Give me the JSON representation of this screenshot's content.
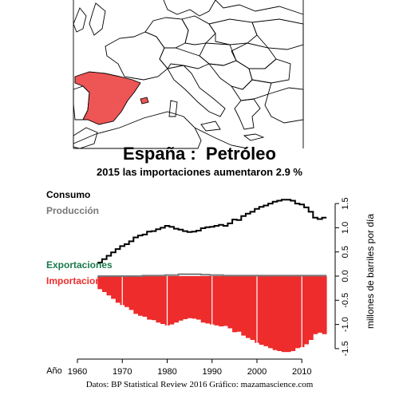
{
  "title": "España :  Petróleo",
  "subtitle": "2015 las importaciones aumentaron 2.9 %",
  "source": "Datos: BP Statistical Review 2016   Gráfico: mazamascience.com",
  "colors": {
    "consumo": "#000000",
    "produccion": "#777777",
    "exportaciones": "#1a7a4c",
    "importaciones": "#ee2c2c",
    "highlight_country": "#ee5555"
  },
  "map": {
    "highlight": "España",
    "icon": "europe-map-icon"
  },
  "chart_data": {
    "type": "area",
    "x_label": "Año",
    "y_label": "millones de barriles por día",
    "xlim": [
      1960,
      2016
    ],
    "ylim": [
      -1.65,
      1.65
    ],
    "x_ticks": [
      "1960",
      "1970",
      "1980",
      "1990",
      "2000",
      "2010"
    ],
    "y_ticks": [
      "1.5",
      "1.0",
      "0.5",
      "0.0",
      "-0.5",
      "-1.0",
      "-1.5"
    ],
    "legend": {
      "consumo": "Consumo",
      "produccion": "Producción",
      "exportaciones": "Exportaciones",
      "importaciones": "Importaciones"
    },
    "series": [
      {
        "name": "Consumo",
        "type": "step",
        "x": [
          1965,
          1966,
          1967,
          1968,
          1969,
          1970,
          1971,
          1972,
          1973,
          1974,
          1975,
          1976,
          1977,
          1978,
          1979,
          1980,
          1981,
          1982,
          1983,
          1984,
          1985,
          1986,
          1987,
          1988,
          1989,
          1990,
          1991,
          1992,
          1993,
          1994,
          1995,
          1996,
          1997,
          1998,
          1999,
          2000,
          2001,
          2002,
          2003,
          2004,
          2005,
          2006,
          2007,
          2008,
          2009,
          2010,
          2011,
          2012,
          2013,
          2014,
          2015
        ],
        "values": [
          0.28,
          0.35,
          0.42,
          0.49,
          0.56,
          0.62,
          0.66,
          0.72,
          0.8,
          0.84,
          0.86,
          0.92,
          0.93,
          0.97,
          1.0,
          1.04,
          1.02,
          0.98,
          0.96,
          0.93,
          0.91,
          0.92,
          0.94,
          0.99,
          1.01,
          1.02,
          1.04,
          1.06,
          1.04,
          1.09,
          1.17,
          1.16,
          1.24,
          1.29,
          1.33,
          1.39,
          1.43,
          1.46,
          1.5,
          1.54,
          1.56,
          1.58,
          1.58,
          1.56,
          1.5,
          1.48,
          1.42,
          1.33,
          1.21,
          1.18,
          1.21
        ]
      },
      {
        "name": "Producción",
        "type": "step",
        "x": [
          1965,
          1966,
          1967,
          1968,
          1969,
          1970,
          1971,
          1972,
          1973,
          1974,
          1975,
          1976,
          1977,
          1978,
          1979,
          1980,
          1981,
          1982,
          1983,
          1984,
          1985,
          1986,
          1987,
          1988,
          1989,
          1990,
          1991,
          1992,
          1993,
          1994,
          1995,
          1996,
          1997,
          1998,
          1999,
          2000,
          2001,
          2002,
          2003,
          2004,
          2005,
          2006,
          2007,
          2008,
          2009,
          2010,
          2011,
          2012,
          2013,
          2014,
          2015
        ],
        "values": [
          0,
          0,
          0,
          0,
          0,
          0,
          0,
          0,
          0,
          0,
          0.01,
          0.01,
          0.01,
          0.01,
          0.01,
          0.02,
          0.02,
          0.02,
          0.04,
          0.04,
          0.04,
          0.04,
          0.04,
          0.03,
          0.03,
          0.02,
          0.02,
          0.02,
          0.01,
          0.01,
          0.01,
          0.01,
          0.01,
          0.01,
          0.01,
          0.01,
          0.01,
          0.01,
          0.01,
          0.01,
          0.01,
          0.01,
          0.01,
          0.01,
          0.01,
          0.01,
          0.01,
          0.01,
          0.01,
          0.01,
          0.01
        ]
      },
      {
        "name": "Importaciones",
        "type": "bar",
        "x": [
          1965,
          1966,
          1967,
          1968,
          1969,
          1970,
          1971,
          1972,
          1973,
          1974,
          1975,
          1976,
          1977,
          1978,
          1979,
          1980,
          1981,
          1982,
          1983,
          1984,
          1985,
          1986,
          1987,
          1988,
          1989,
          1990,
          1991,
          1992,
          1993,
          1994,
          1995,
          1996,
          1997,
          1998,
          1999,
          2000,
          2001,
          2002,
          2003,
          2004,
          2005,
          2006,
          2007,
          2008,
          2009,
          2010,
          2011,
          2012,
          2013,
          2014,
          2015
        ],
        "values": [
          -0.27,
          -0.33,
          -0.4,
          -0.47,
          -0.55,
          -0.6,
          -0.64,
          -0.7,
          -0.78,
          -0.82,
          -0.84,
          -0.9,
          -0.91,
          -0.96,
          -0.99,
          -1.02,
          -1.0,
          -0.96,
          -0.92,
          -0.89,
          -0.87,
          -0.88,
          -0.9,
          -0.96,
          -0.98,
          -1.0,
          -1.02,
          -1.04,
          -1.03,
          -1.08,
          -1.16,
          -1.15,
          -1.23,
          -1.28,
          -1.32,
          -1.38,
          -1.42,
          -1.45,
          -1.49,
          -1.53,
          -1.55,
          -1.57,
          -1.57,
          -1.55,
          -1.49,
          -1.47,
          -1.41,
          -1.32,
          -1.2,
          -1.17,
          -1.2
        ]
      }
    ]
  }
}
